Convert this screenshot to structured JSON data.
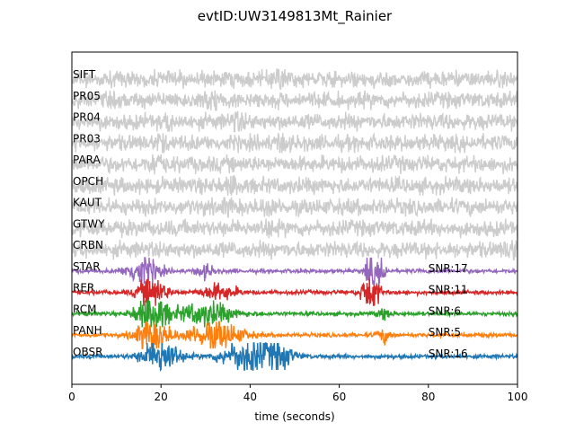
{
  "chart_data": {
    "type": "line",
    "title": "evtID:UW3149813Mt_Rainier",
    "xlabel": "time (seconds)",
    "ylabel": "",
    "xlim": [
      0,
      100
    ],
    "x_ticks": [
      "0",
      "20",
      "40",
      "60",
      "80",
      "100"
    ],
    "x_tick_values": [
      0,
      20,
      40,
      60,
      80,
      100
    ],
    "grid": false,
    "legend": "none",
    "series": [
      {
        "name": "SIFT",
        "color": "#cccccc",
        "snr": null,
        "bursts": [
          [
            47,
            1.4,
            1.0
          ]
        ]
      },
      {
        "name": "PR05",
        "color": "#cccccc",
        "snr": null,
        "bursts": [
          [
            31,
            1.2,
            1.5
          ]
        ]
      },
      {
        "name": "PR04",
        "color": "#cccccc",
        "snr": null,
        "bursts": [
          [
            22,
            1.0,
            1.0
          ],
          [
            37,
            1.0,
            1.2
          ]
        ]
      },
      {
        "name": "PR03",
        "color": "#cccccc",
        "snr": null,
        "bursts": [
          [
            20,
            1.0,
            1.0
          ],
          [
            47,
            1.0,
            1.0
          ]
        ]
      },
      {
        "name": "PARA",
        "color": "#cccccc",
        "snr": null,
        "bursts": [
          [
            19,
            1.0,
            1.4
          ]
        ]
      },
      {
        "name": "OPCH",
        "color": "#cccccc",
        "snr": null,
        "bursts": [
          [
            36,
            1.0,
            1.0
          ]
        ]
      },
      {
        "name": "KAUT",
        "color": "#cccccc",
        "snr": null,
        "bursts": [
          [
            35,
            1.2,
            1.0
          ],
          [
            44,
            1.0,
            1.0
          ]
        ]
      },
      {
        "name": "GTWY",
        "color": "#cccccc",
        "snr": null,
        "bursts": [
          [
            44,
            1.0,
            1.0
          ]
        ]
      },
      {
        "name": "CRBN",
        "color": "#cccccc",
        "snr": null,
        "bursts": [
          [
            99,
            1.2,
            1.5
          ]
        ]
      },
      {
        "name": "STAR",
        "color": "#9467bd",
        "snr": "SNR:17",
        "bursts": [
          [
            16,
            2.0,
            3.5
          ],
          [
            30,
            0.8,
            2.0
          ],
          [
            67,
            3.0,
            1.0
          ],
          [
            69.5,
            3.0,
            0.8
          ]
        ]
      },
      {
        "name": "RER",
        "color": "#d62728",
        "snr": "SNR:11",
        "bursts": [
          [
            18,
            2.0,
            3.0
          ],
          [
            33,
            1.0,
            4.0
          ],
          [
            67,
            3.2,
            1.8
          ]
        ]
      },
      {
        "name": "RCM",
        "color": "#2ca02c",
        "snr": "SNR:6",
        "bursts": [
          [
            18,
            2.5,
            3.5
          ],
          [
            30,
            1.5,
            6.0
          ],
          [
            70,
            0.6,
            1.5
          ]
        ]
      },
      {
        "name": "PANH",
        "color": "#ff7f0e",
        "snr": "SNR:5",
        "bursts": [
          [
            18,
            2.5,
            3.5
          ],
          [
            32,
            1.8,
            6.0
          ],
          [
            70,
            0.8,
            1.5
          ]
        ]
      },
      {
        "name": "OBSR",
        "color": "#1f77b4",
        "snr": "SNR:16",
        "bursts": [
          [
            20,
            2.5,
            4.0
          ],
          [
            40,
            2.5,
            6.0
          ],
          [
            47,
            1.0,
            3.0
          ]
        ]
      }
    ]
  }
}
